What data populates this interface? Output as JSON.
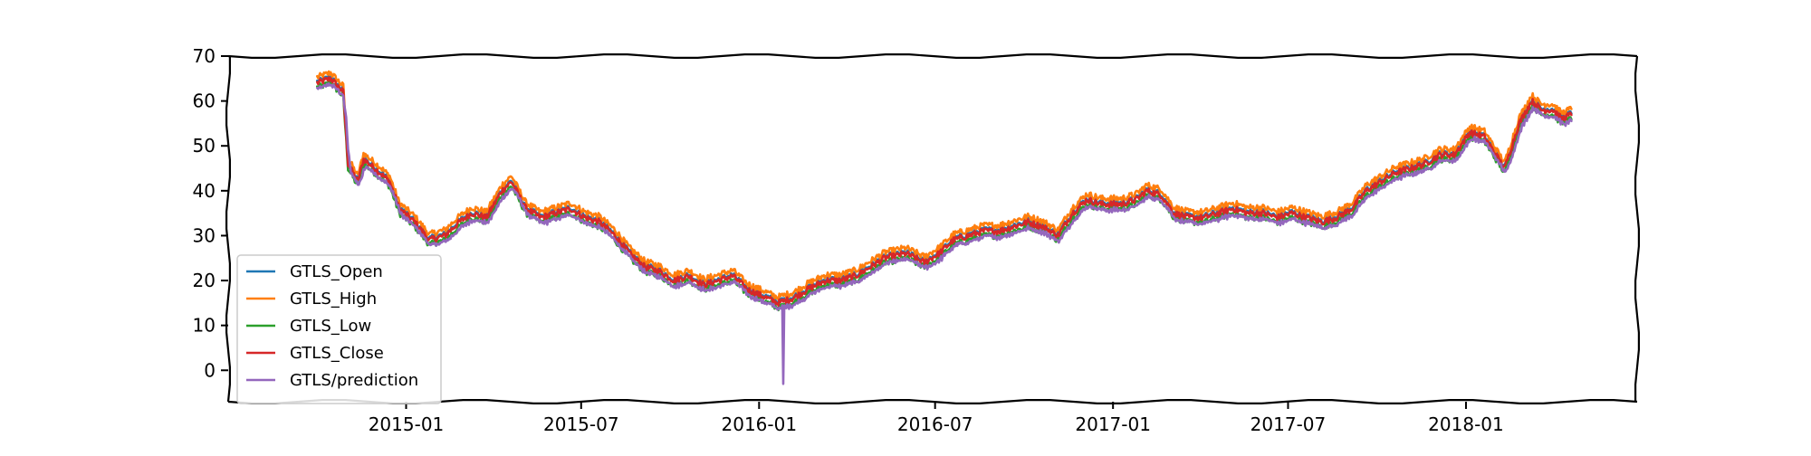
{
  "chart_data": {
    "type": "line",
    "title": "",
    "xlabel": "",
    "ylabel": "",
    "ylim": [
      -7,
      70
    ],
    "xlim": [
      "2014-07-01",
      "2018-06-27"
    ],
    "grid": false,
    "legend_position": "lower-left",
    "y_ticks": [
      0,
      10,
      20,
      30,
      40,
      50,
      60,
      70
    ],
    "x_ticks": [
      "2015-01",
      "2015-07",
      "2016-01",
      "2016-07",
      "2017-01",
      "2017-07",
      "2018-01"
    ],
    "series": [
      {
        "name": "GTLS_Open",
        "color": "#1f77b4",
        "offset": 0.3
      },
      {
        "name": "GTLS_High",
        "color": "#ff7f0e",
        "offset": 1.3
      },
      {
        "name": "GTLS_Low",
        "color": "#2ca02c",
        "offset": -1.0
      },
      {
        "name": "GTLS_Close",
        "color": "#d62728",
        "offset": 0.0
      },
      {
        "name": "GTLS/prediction",
        "color": "#9467bd",
        "offset": -1.3
      }
    ],
    "close_anchors": [
      [
        "2014-10-01",
        64
      ],
      [
        "2014-10-15",
        65
      ],
      [
        "2014-10-28",
        62
      ],
      [
        "2014-11-02",
        46
      ],
      [
        "2014-11-12",
        42
      ],
      [
        "2014-11-18",
        47
      ],
      [
        "2014-12-05",
        44
      ],
      [
        "2014-12-15",
        42
      ],
      [
        "2014-12-25",
        36
      ],
      [
        "2015-01-10",
        33
      ],
      [
        "2015-01-25",
        29
      ],
      [
        "2015-02-10",
        30
      ],
      [
        "2015-02-25",
        33
      ],
      [
        "2015-03-10",
        35
      ],
      [
        "2015-03-25",
        34
      ],
      [
        "2015-04-10",
        40
      ],
      [
        "2015-04-20",
        42
      ],
      [
        "2015-05-05",
        36
      ],
      [
        "2015-05-20",
        34
      ],
      [
        "2015-06-05",
        35
      ],
      [
        "2015-06-20",
        36
      ],
      [
        "2015-07-05",
        34
      ],
      [
        "2015-07-20",
        33
      ],
      [
        "2015-08-05",
        30
      ],
      [
        "2015-08-20",
        26
      ],
      [
        "2015-09-05",
        23
      ],
      [
        "2015-09-20",
        22
      ],
      [
        "2015-10-05",
        20
      ],
      [
        "2015-10-20",
        21
      ],
      [
        "2015-11-05",
        19
      ],
      [
        "2015-11-20",
        20
      ],
      [
        "2015-12-05",
        21
      ],
      [
        "2015-12-20",
        18
      ],
      [
        "2016-01-10",
        16
      ],
      [
        "2016-01-20",
        15
      ],
      [
        "2016-02-05",
        16
      ],
      [
        "2016-02-20",
        18
      ],
      [
        "2016-03-10",
        20
      ],
      [
        "2016-03-25",
        20
      ],
      [
        "2016-04-10",
        21
      ],
      [
        "2016-04-25",
        23
      ],
      [
        "2016-05-10",
        25
      ],
      [
        "2016-06-01",
        26
      ],
      [
        "2016-06-20",
        24
      ],
      [
        "2016-07-05",
        26
      ],
      [
        "2016-07-20",
        29
      ],
      [
        "2016-08-05",
        30
      ],
      [
        "2016-08-20",
        31
      ],
      [
        "2016-09-05",
        31
      ],
      [
        "2016-09-20",
        32
      ],
      [
        "2016-10-05",
        33
      ],
      [
        "2016-10-20",
        32
      ],
      [
        "2016-11-05",
        30
      ],
      [
        "2016-11-20",
        35
      ],
      [
        "2016-12-05",
        38
      ],
      [
        "2016-12-20",
        37
      ],
      [
        "2017-01-10",
        37
      ],
      [
        "2017-01-25",
        38
      ],
      [
        "2017-02-05",
        40
      ],
      [
        "2017-02-20",
        39
      ],
      [
        "2017-03-05",
        35
      ],
      [
        "2017-03-20",
        34
      ],
      [
        "2017-04-05",
        34
      ],
      [
        "2017-04-20",
        35
      ],
      [
        "2017-05-05",
        36
      ],
      [
        "2017-05-20",
        35
      ],
      [
        "2017-06-05",
        35
      ],
      [
        "2017-06-20",
        34
      ],
      [
        "2017-07-05",
        35
      ],
      [
        "2017-07-20",
        34
      ],
      [
        "2017-08-05",
        33
      ],
      [
        "2017-08-20",
        34
      ],
      [
        "2017-09-05",
        36
      ],
      [
        "2017-09-20",
        40
      ],
      [
        "2017-10-05",
        42
      ],
      [
        "2017-10-20",
        44
      ],
      [
        "2017-11-05",
        45
      ],
      [
        "2017-11-20",
        46
      ],
      [
        "2017-12-05",
        48
      ],
      [
        "2017-12-20",
        48
      ],
      [
        "2018-01-05",
        53
      ],
      [
        "2018-01-20",
        52
      ],
      [
        "2018-02-01",
        48
      ],
      [
        "2018-02-10",
        45
      ],
      [
        "2018-02-25",
        55
      ],
      [
        "2018-03-10",
        60
      ],
      [
        "2018-03-20",
        58
      ],
      [
        "2018-04-01",
        58
      ],
      [
        "2018-04-10",
        56
      ],
      [
        "2018-04-20",
        57
      ]
    ],
    "prediction_dip": {
      "date": "2016-01-26",
      "value": -3
    }
  }
}
